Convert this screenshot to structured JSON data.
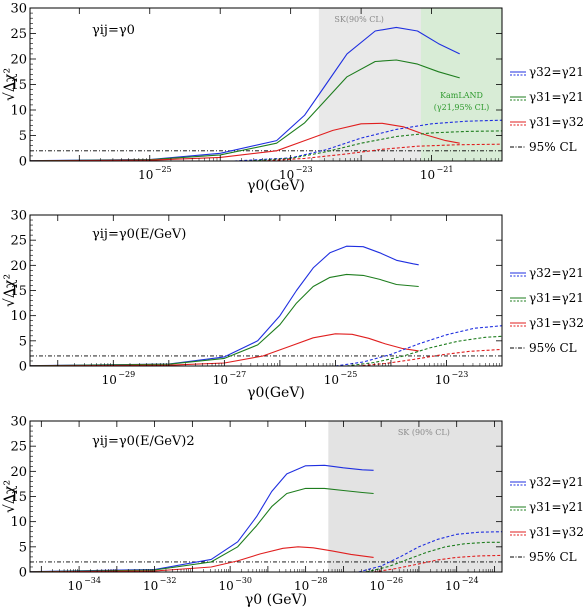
{
  "chart_data": [
    {
      "type": "line",
      "title": "γij=γ0",
      "xlabel": "γ0(GeV)",
      "ylabel": "√Δχ²",
      "x_scale": "log10",
      "xlim": [
        -26.7,
        -20.0
      ],
      "ylim": [
        0,
        30
      ],
      "yticks": [
        0,
        5,
        10,
        15,
        20,
        25,
        30
      ],
      "xtick_labels": [
        {
          "exp": -25,
          "label": "10",
          "sup": "−25"
        },
        {
          "exp": -23,
          "label": "10",
          "sup": "−23"
        },
        {
          "exp": -21,
          "label": "10",
          "sup": "−21"
        }
      ],
      "shaded_regions": [
        {
          "label": "SK(90% CL)",
          "x_from": -22.6,
          "x_to": -20.0,
          "color": "#e9e9e9"
        },
        {
          "label": "KamLAND",
          "label2": "(γ21,95% CL)",
          "x_from": -21.15,
          "x_to": -20.0,
          "color": "#d8ecd6"
        }
      ],
      "cl_line": 2.0,
      "series": [
        {
          "name": "γ32=γ21",
          "style": "solid",
          "color": "#1f2fe0",
          "points": [
            [
              -26.7,
              0.05
            ],
            [
              -25,
              0.3
            ],
            [
              -24,
              1.5
            ],
            [
              -23.2,
              4
            ],
            [
              -22.8,
              9
            ],
            [
              -22.5,
              15
            ],
            [
              -22.2,
              21
            ],
            [
              -21.8,
              25.5
            ],
            [
              -21.5,
              26.2
            ],
            [
              -21.2,
              25.5
            ],
            [
              -20.9,
              23
            ],
            [
              -20.6,
              21
            ]
          ]
        },
        {
          "name": "γ31=γ21",
          "style": "solid",
          "color": "#1e7d1e",
          "points": [
            [
              -26.7,
              0.04
            ],
            [
              -25,
              0.25
            ],
            [
              -24,
              1.2
            ],
            [
              -23.2,
              3.5
            ],
            [
              -22.8,
              7.5
            ],
            [
              -22.5,
              12
            ],
            [
              -22.2,
              16.5
            ],
            [
              -21.8,
              19.5
            ],
            [
              -21.5,
              19.8
            ],
            [
              -21.2,
              19
            ],
            [
              -20.9,
              17.5
            ],
            [
              -20.6,
              16.3
            ]
          ]
        },
        {
          "name": "γ31=γ32",
          "style": "solid",
          "color": "#e01f1f",
          "points": [
            [
              -26.7,
              0.02
            ],
            [
              -25,
              0.15
            ],
            [
              -24,
              0.7
            ],
            [
              -23.2,
              2
            ],
            [
              -22.8,
              4
            ],
            [
              -22.4,
              6
            ],
            [
              -22,
              7.3
            ],
            [
              -21.7,
              7.4
            ],
            [
              -21.4,
              6.7
            ],
            [
              -21.1,
              5.2
            ],
            [
              -20.8,
              4
            ],
            [
              -20.6,
              3.5
            ]
          ]
        },
        {
          "name": "γ32=γ21",
          "style": "dashed",
          "color": "#1f2fe0",
          "points": [
            [
              -23.8,
              0
            ],
            [
              -23,
              0.6
            ],
            [
              -22.5,
              2.2
            ],
            [
              -22,
              4.5
            ],
            [
              -21.5,
              6.2
            ],
            [
              -21,
              7.3
            ],
            [
              -20.5,
              7.8
            ],
            [
              -20,
              8.0
            ]
          ]
        },
        {
          "name": "γ31=γ21",
          "style": "dashed",
          "color": "#1e7d1e",
          "points": [
            [
              -23.6,
              0
            ],
            [
              -23,
              0.5
            ],
            [
              -22.5,
              1.8
            ],
            [
              -22,
              3.5
            ],
            [
              -21.5,
              4.8
            ],
            [
              -21,
              5.5
            ],
            [
              -20.5,
              5.8
            ],
            [
              -20,
              5.9
            ]
          ]
        },
        {
          "name": "γ31=γ32",
          "style": "dashed",
          "color": "#e01f1f",
          "points": [
            [
              -23.4,
              0
            ],
            [
              -22.8,
              0.5
            ],
            [
              -22.2,
              1.4
            ],
            [
              -21.7,
              2.3
            ],
            [
              -21.2,
              2.9
            ],
            [
              -20.6,
              3.2
            ],
            [
              -20,
              3.3
            ]
          ]
        }
      ],
      "legend": [
        {
          "label": "γ32=γ21",
          "color": "#1f2fe0"
        },
        {
          "label": "γ31=γ21",
          "color": "#1e7d1e"
        },
        {
          "label": "γ31=γ32",
          "color": "#e01f1f"
        },
        {
          "label": "95% CL",
          "color": "#000000"
        }
      ]
    },
    {
      "type": "line",
      "title": "γij=γ0(E/GeV)",
      "xlabel": "γ0(GeV)",
      "ylabel": "√Δχ²",
      "x_scale": "log10",
      "xlim": [
        -30.5,
        -22.0
      ],
      "ylim": [
        0,
        30
      ],
      "yticks": [
        0,
        5,
        10,
        15,
        20,
        25,
        30
      ],
      "xtick_labels": [
        {
          "exp": -29,
          "label": "10",
          "sup": "−29"
        },
        {
          "exp": -27,
          "label": "10",
          "sup": "−27"
        },
        {
          "exp": -25,
          "label": "10",
          "sup": "−25"
        },
        {
          "exp": -23,
          "label": "10",
          "sup": "−23"
        }
      ],
      "shaded_regions": [],
      "cl_line": 2.0,
      "series": [
        {
          "name": "γ32=γ21",
          "style": "solid",
          "color": "#1f2fe0",
          "points": [
            [
              -30.5,
              0.05
            ],
            [
              -28,
              0.4
            ],
            [
              -27,
              1.8
            ],
            [
              -26.4,
              5
            ],
            [
              -26,
              10
            ],
            [
              -25.7,
              15
            ],
            [
              -25.4,
              19.5
            ],
            [
              -25.1,
              22.5
            ],
            [
              -24.8,
              23.8
            ],
            [
              -24.5,
              23.7
            ],
            [
              -24.2,
              22.5
            ],
            [
              -23.9,
              21
            ],
            [
              -23.6,
              20.3
            ],
            [
              -23.5,
              20.1
            ]
          ]
        },
        {
          "name": "γ31=γ21",
          "style": "solid",
          "color": "#1e7d1e",
          "points": [
            [
              -30.5,
              0.04
            ],
            [
              -28,
              0.35
            ],
            [
              -27,
              1.5
            ],
            [
              -26.4,
              4.2
            ],
            [
              -26,
              8.2
            ],
            [
              -25.7,
              12.5
            ],
            [
              -25.4,
              15.8
            ],
            [
              -25.1,
              17.6
            ],
            [
              -24.8,
              18.2
            ],
            [
              -24.5,
              18
            ],
            [
              -24.2,
              17.2
            ],
            [
              -23.9,
              16.2
            ],
            [
              -23.5,
              15.8
            ]
          ]
        },
        {
          "name": "γ31=γ32",
          "style": "solid",
          "color": "#e01f1f",
          "points": [
            [
              -30.5,
              0.02
            ],
            [
              -28,
              0.15
            ],
            [
              -27,
              0.6
            ],
            [
              -26.3,
              2
            ],
            [
              -25.8,
              4
            ],
            [
              -25.4,
              5.6
            ],
            [
              -25,
              6.4
            ],
            [
              -24.7,
              6.3
            ],
            [
              -24.4,
              5.5
            ],
            [
              -24.1,
              4.4
            ],
            [
              -23.8,
              3.5
            ],
            [
              -23.5,
              3.0
            ]
          ]
        },
        {
          "name": "γ32=γ21",
          "style": "dashed",
          "color": "#1f2fe0",
          "points": [
            [
              -25,
              0
            ],
            [
              -24.5,
              0.8
            ],
            [
              -24,
              2.3
            ],
            [
              -23.5,
              4.4
            ],
            [
              -23,
              6.2
            ],
            [
              -22.5,
              7.5
            ],
            [
              -22,
              8.0
            ]
          ]
        },
        {
          "name": "γ31=γ21",
          "style": "dashed",
          "color": "#1e7d1e",
          "points": [
            [
              -24.8,
              0
            ],
            [
              -24.3,
              0.7
            ],
            [
              -23.8,
              1.9
            ],
            [
              -23.3,
              3.6
            ],
            [
              -22.8,
              4.9
            ],
            [
              -22.3,
              5.7
            ],
            [
              -22,
              5.9
            ]
          ]
        },
        {
          "name": "γ31=γ32",
          "style": "dashed",
          "color": "#e01f1f",
          "points": [
            [
              -24.6,
              0
            ],
            [
              -24.1,
              0.5
            ],
            [
              -23.6,
              1.3
            ],
            [
              -23.1,
              2.2
            ],
            [
              -22.6,
              2.9
            ],
            [
              -22,
              3.3
            ]
          ]
        }
      ],
      "legend": [
        {
          "label": "γ32=γ21",
          "color": "#1f2fe0"
        },
        {
          "label": "γ31=γ21",
          "color": "#1e7d1e"
        },
        {
          "label": "γ31=γ32",
          "color": "#e01f1f"
        },
        {
          "label": "95% CL",
          "color": "#000000"
        }
      ]
    },
    {
      "type": "line",
      "title": "γij=γ0(E/GeV)2",
      "xlabel": "γ0 (GeV)",
      "ylabel": "√Δχ²",
      "x_scale": "log10",
      "xlim": [
        -35.3,
        -22.8
      ],
      "ylim": [
        0,
        30
      ],
      "yticks": [
        0,
        5,
        10,
        15,
        20,
        25,
        30
      ],
      "xtick_labels": [
        {
          "exp": -34,
          "label": "10",
          "sup": "−34"
        },
        {
          "exp": -32,
          "label": "10",
          "sup": "−32"
        },
        {
          "exp": -30,
          "label": "10",
          "sup": "−30"
        },
        {
          "exp": -28,
          "label": "10",
          "sup": "−28"
        },
        {
          "exp": -26,
          "label": "10",
          "sup": "−26"
        },
        {
          "exp": -24,
          "label": "10",
          "sup": "−24"
        }
      ],
      "shaded_regions": [
        {
          "label": "SK (90% CL)",
          "x_from": -27.4,
          "x_to": -22.8,
          "color": "#e3e3e3"
        }
      ],
      "cl_line": 2.0,
      "series": [
        {
          "name": "γ32=γ21",
          "style": "solid",
          "color": "#1f2fe0",
          "points": [
            [
              -35.3,
              0.05
            ],
            [
              -32,
              0.5
            ],
            [
              -30.5,
              2.5
            ],
            [
              -29.8,
              6
            ],
            [
              -29.3,
              11
            ],
            [
              -28.9,
              16
            ],
            [
              -28.5,
              19.5
            ],
            [
              -28,
              21.1
            ],
            [
              -27.5,
              21.2
            ],
            [
              -27,
              20.7
            ],
            [
              -26.5,
              20.3
            ],
            [
              -26.2,
              20.2
            ]
          ]
        },
        {
          "name": "γ31=γ21",
          "style": "solid",
          "color": "#1e7d1e",
          "points": [
            [
              -35.3,
              0.04
            ],
            [
              -32,
              0.4
            ],
            [
              -30.5,
              2
            ],
            [
              -29.8,
              5
            ],
            [
              -29.3,
              9.2
            ],
            [
              -28.9,
              13
            ],
            [
              -28.5,
              15.6
            ],
            [
              -28,
              16.6
            ],
            [
              -27.5,
              16.6
            ],
            [
              -27,
              16.2
            ],
            [
              -26.5,
              15.8
            ],
            [
              -26.2,
              15.6
            ]
          ]
        },
        {
          "name": "γ31=γ32",
          "style": "solid",
          "color": "#e01f1f",
          "points": [
            [
              -35.3,
              0.02
            ],
            [
              -32,
              0.2
            ],
            [
              -30.5,
              1
            ],
            [
              -29.8,
              2.2
            ],
            [
              -29.2,
              3.6
            ],
            [
              -28.6,
              4.7
            ],
            [
              -28.2,
              5.0
            ],
            [
              -27.8,
              4.8
            ],
            [
              -27.3,
              4.2
            ],
            [
              -26.8,
              3.5
            ],
            [
              -26.2,
              2.9
            ]
          ]
        },
        {
          "name": "γ32=γ21",
          "style": "dashed",
          "color": "#1f2fe0",
          "points": [
            [
              -26.6,
              0
            ],
            [
              -26,
              1.2
            ],
            [
              -25.5,
              3.0
            ],
            [
              -25,
              5
            ],
            [
              -24.5,
              6.5
            ],
            [
              -24,
              7.5
            ],
            [
              -23.4,
              7.9
            ],
            [
              -22.8,
              8.0
            ]
          ]
        },
        {
          "name": "γ31=γ21",
          "style": "dashed",
          "color": "#1e7d1e",
          "points": [
            [
              -26.4,
              0
            ],
            [
              -25.8,
              1.1
            ],
            [
              -25.3,
              2.5
            ],
            [
              -24.8,
              3.9
            ],
            [
              -24.3,
              5
            ],
            [
              -23.8,
              5.6
            ],
            [
              -23.2,
              5.9
            ],
            [
              -22.8,
              5.9
            ]
          ]
        },
        {
          "name": "γ31=γ32",
          "style": "dashed",
          "color": "#e01f1f",
          "points": [
            [
              -26.2,
              0
            ],
            [
              -25.6,
              0.7
            ],
            [
              -25,
              1.6
            ],
            [
              -24.5,
              2.4
            ],
            [
              -24,
              2.9
            ],
            [
              -23.4,
              3.2
            ],
            [
              -22.8,
              3.3
            ]
          ]
        }
      ],
      "legend": [
        {
          "label": "γ32=γ21",
          "color": "#1f2fe0"
        },
        {
          "label": "γ31=γ21",
          "color": "#1e7d1e"
        },
        {
          "label": "γ31=γ32",
          "color": "#e01f1f"
        },
        {
          "label": "95% CL",
          "color": "#000000"
        }
      ]
    }
  ]
}
